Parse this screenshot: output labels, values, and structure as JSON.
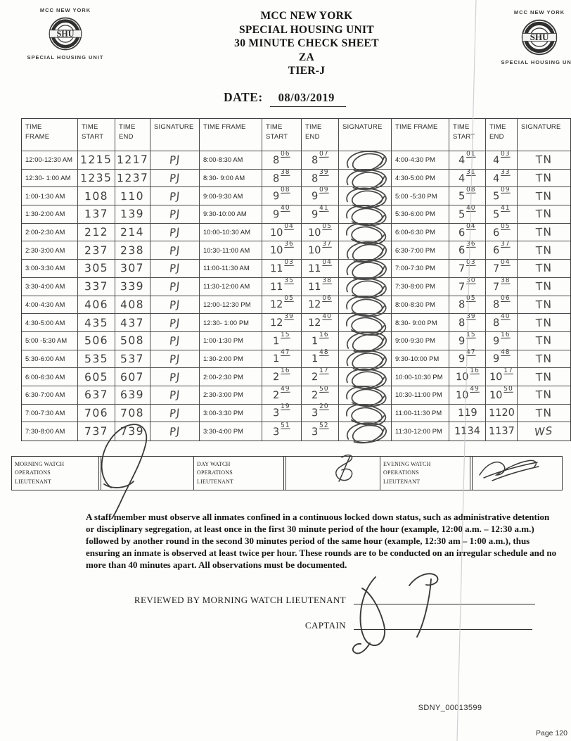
{
  "header": {
    "logo": {
      "top": "MCC NEW YORK",
      "seal_text": "SHU",
      "bottom": "SPECIAL HOUSING UNIT"
    },
    "title_lines": [
      "MCC NEW YORK",
      "SPECIAL HOUSING UNIT",
      "30 MINUTE CHECK SHEET",
      "ZA",
      "TIER-J"
    ],
    "date_label": "DATE:",
    "date_value": "08/03/2019"
  },
  "table": {
    "groups": [
      {
        "headers": [
          "TIME\nFRAME",
          "TIME\nSTART",
          "TIME\nEND",
          "SIGNATURE"
        ],
        "rows": [
          {
            "frame": "12:00-12:30 AM",
            "start": "1215",
            "end": "1217",
            "sig": "PJ"
          },
          {
            "frame": "12:30- 1:00 AM",
            "start": "1235",
            "end": "1237",
            "sig": "PJ"
          },
          {
            "frame": "1:00-1:30 AM",
            "start": "108",
            "end": "110",
            "sig": "PJ"
          },
          {
            "frame": "1:30-2:00 AM",
            "start": "137",
            "end": "139",
            "sig": "PJ"
          },
          {
            "frame": "2:00-2:30 AM",
            "start": "212",
            "end": "214",
            "sig": "PJ"
          },
          {
            "frame": "2:30-3:00 AM",
            "start": "237",
            "end": "238",
            "sig": "PJ"
          },
          {
            "frame": "3:00-3:30 AM",
            "start": "305",
            "end": "307",
            "sig": "PJ"
          },
          {
            "frame": "3:30-4:00 AM",
            "start": "337",
            "end": "339",
            "sig": "PJ"
          },
          {
            "frame": "4:00-4:30 AM",
            "start": "406",
            "end": "408",
            "sig": "PJ"
          },
          {
            "frame": "4:30-5:00 AM",
            "start": "435",
            "end": "437",
            "sig": "PJ"
          },
          {
            "frame": "5:00 -5:30 AM",
            "start": "506",
            "end": "508",
            "sig": "PJ"
          },
          {
            "frame": "5:30-6:00 AM",
            "start": "535",
            "end": "537",
            "sig": "PJ"
          },
          {
            "frame": "6:00-6:30 AM",
            "start": "605",
            "end": "607",
            "sig": "PJ"
          },
          {
            "frame": "6:30-7:00 AM",
            "start": "637",
            "end": "639",
            "sig": "PJ"
          },
          {
            "frame": "7:00-7:30 AM",
            "start": "706",
            "end": "708",
            "sig": "PJ"
          },
          {
            "frame": "7:30-8:00 AM",
            "start": "737",
            "end": "739",
            "sig": "PJ"
          }
        ]
      },
      {
        "headers": [
          "TIME FRAME",
          "TIME\nSTART",
          "TIME\nEND",
          "SIGNATURE"
        ],
        "rows": [
          {
            "frame": "8:00-8:30 AM",
            "start": "8^06",
            "end": "8^07",
            "sig": "scribble"
          },
          {
            "frame": "8:30- 9:00 AM",
            "start": "8^38",
            "end": "8^39",
            "sig": "scribble"
          },
          {
            "frame": "9:00-9:30 AM",
            "start": "9^08",
            "end": "9^09",
            "sig": "scribble"
          },
          {
            "frame": "9:30-10:00 AM",
            "start": "9^40",
            "end": "9^41",
            "sig": "scribble"
          },
          {
            "frame": "10:00-10:30 AM",
            "start": "10^04",
            "end": "10^05",
            "sig": "scribble"
          },
          {
            "frame": "10:30-11:00 AM",
            "start": "10^36",
            "end": "10^37",
            "sig": "scribble"
          },
          {
            "frame": "11:00-11:30 AM",
            "start": "11^03",
            "end": "11^04",
            "sig": "scribble"
          },
          {
            "frame": "11:30-12:00 AM",
            "start": "11^35",
            "end": "11^38",
            "sig": "scribble"
          },
          {
            "frame": "12:00-12:30 PM",
            "start": "12^05",
            "end": "12^06",
            "sig": "scribble"
          },
          {
            "frame": "12:30- 1:00 PM",
            "start": "12^39",
            "end": "12^40",
            "sig": "scribble"
          },
          {
            "frame": "1:00-1:30 PM",
            "start": "1^15",
            "end": "1^16",
            "sig": "scribble"
          },
          {
            "frame": "1:30-2:00 PM",
            "start": "1^47",
            "end": "1^48",
            "sig": "scribble"
          },
          {
            "frame": "2:00-2:30 PM",
            "start": "2^16",
            "end": "2^17",
            "sig": "scribble"
          },
          {
            "frame": "2:30-3:00 PM",
            "start": "2^49",
            "end": "2^50",
            "sig": "scribble"
          },
          {
            "frame": "3:00-3:30 PM",
            "start": "3^19",
            "end": "3^20",
            "sig": "scribble"
          },
          {
            "frame": "3:30-4:00 PM",
            "start": "3^51",
            "end": "3^52",
            "sig": "scribble"
          }
        ]
      },
      {
        "headers": [
          "TIME FRAME",
          "TIME\nSTART",
          "TIME\nEND",
          "SIGNATURE"
        ],
        "rows": [
          {
            "frame": "4:00-4:30 PM",
            "start": "4^01",
            "end": "4^03",
            "sig": "TN"
          },
          {
            "frame": "4:30-5:00 PM",
            "start": "4^31",
            "end": "4^33",
            "sig": "TN"
          },
          {
            "frame": "5:00 -5:30 PM",
            "start": "5^08",
            "end": "5^09",
            "sig": "TN"
          },
          {
            "frame": "5:30-6:00 PM",
            "start": "5^40",
            "end": "5^41",
            "sig": "TN"
          },
          {
            "frame": "6:00-6:30 PM",
            "start": "6^04",
            "end": "6^05",
            "sig": "TN"
          },
          {
            "frame": "6:30-7:00 PM",
            "start": "6^36",
            "end": "6^37",
            "sig": "TN"
          },
          {
            "frame": "7:00-7:30 PM",
            "start": "7^03",
            "end": "7^04",
            "sig": "TN"
          },
          {
            "frame": "7:30-8:00 PM",
            "start": "7^30",
            "end": "7^38",
            "sig": "TN"
          },
          {
            "frame": "8:00-8:30 PM",
            "start": "8^05",
            "end": "8^06",
            "sig": "TN"
          },
          {
            "frame": "8:30- 9:00 PM",
            "start": "8^39",
            "end": "8^40",
            "sig": "TN"
          },
          {
            "frame": "9:00-9:30 PM",
            "start": "9^15",
            "end": "9^16",
            "sig": "TN"
          },
          {
            "frame": "9:30-10:00 PM",
            "start": "9^47",
            "end": "9^48",
            "sig": "TN"
          },
          {
            "frame": "10:00-10:30 PM",
            "start": "10^16",
            "end": "10^17",
            "sig": "TN"
          },
          {
            "frame": "10:30-11:00 PM",
            "start": "10^49",
            "end": "10^50",
            "sig": "TN"
          },
          {
            "frame": "11:00-11:30 PM",
            "start": "119",
            "end": "1120",
            "sig": "TN"
          },
          {
            "frame": "11:30-12:00 PM",
            "start": "1134",
            "end": "1137",
            "sig": "WS"
          }
        ]
      }
    ]
  },
  "watch_band": {
    "cells": [
      "MORNING WATCH\nOPERATIONS\nLIEUTENANT",
      "DAY WATCH\nOPERATIONS\nLIEUTENANT",
      "EVENING WATCH\nOPERATIONS\nLIEUTENANT"
    ]
  },
  "notice": "A staff member must observe all inmates confined in a continuous locked down status, such as administrative detention or disciplinary segregation, at least once in the first 30 minute period of the hour (example, 12:00 a.m. – 12:30 a.m.) followed by another round in the second 30 minutes period of the same hour (example, 12:30 am – 1:00 a.m.), thus ensuring an inmate is observed at least twice per hour. These rounds are to be conducted on an irregular schedule and no more than 40 minutes apart. All observations must be documented.",
  "review": {
    "reviewed_label": "REVIEWED BY MORNING WATCH LIEUTENANT",
    "captain_label": "CAPTAIN"
  },
  "footer": {
    "bates": "SDNY_00013599",
    "page": "Page 120"
  }
}
